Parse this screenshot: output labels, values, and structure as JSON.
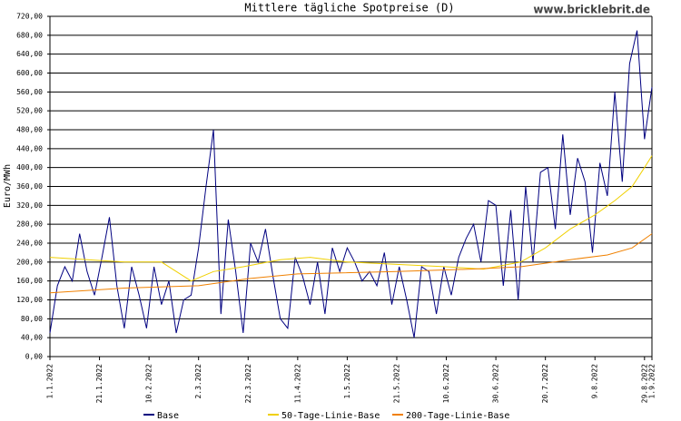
{
  "chart_data": {
    "type": "line",
    "title": "Mittlere tägliche Spotpreise (D)",
    "watermark": "www.bricklebrit.de",
    "y_label": "Euro/MWh",
    "xlim": [
      "1.1.2022",
      "1.9.2022"
    ],
    "xticks": [
      "1.1.2022",
      "21.1.2022",
      "10.2.2022",
      "2.3.2022",
      "22.3.2022",
      "11.4.2022",
      "1.5.2022",
      "21.5.2022",
      "10.6.2022",
      "30.6.2022",
      "20.7.2022",
      "9.8.2022",
      "29.8.2022",
      "1.9.2022"
    ],
    "ylim": [
      0,
      720
    ],
    "yticks": [
      {
        "value": 0,
        "label": "0,00"
      },
      {
        "value": 40,
        "label": "40,00"
      },
      {
        "value": 80,
        "label": "80,00"
      },
      {
        "value": 120,
        "label": "120,00"
      },
      {
        "value": 160,
        "label": "160,00"
      },
      {
        "value": 200,
        "label": "200,00"
      },
      {
        "value": 240,
        "label": "240,00"
      },
      {
        "value": 280,
        "label": "280,00"
      },
      {
        "value": 320,
        "label": "320,00"
      },
      {
        "value": 360,
        "label": "360,00"
      },
      {
        "value": 400,
        "label": "400,00"
      },
      {
        "value": 440,
        "label": "440,00"
      },
      {
        "value": 480,
        "label": "480,00"
      },
      {
        "value": 520,
        "label": "520,00"
      },
      {
        "value": 560,
        "label": "560,00"
      },
      {
        "value": 600,
        "label": "600,00"
      },
      {
        "value": 640,
        "label": "640,00"
      },
      {
        "value": 680,
        "label": "680,00"
      },
      {
        "value": 720,
        "label": "720,00"
      }
    ],
    "grid": true,
    "series": [
      {
        "name": "Base",
        "color": "#000080",
        "x": [
          "1.1.2022",
          "4.1.2022",
          "7.1.2022",
          "10.1.2022",
          "13.1.2022",
          "16.1.2022",
          "19.1.2022",
          "22.1.2022",
          "25.1.2022",
          "28.1.2022",
          "31.1.2022",
          "3.2.2022",
          "6.2.2022",
          "9.2.2022",
          "12.2.2022",
          "15.2.2022",
          "18.2.2022",
          "21.2.2022",
          "24.2.2022",
          "27.2.2022",
          "2.3.2022",
          "5.3.2022",
          "8.3.2022",
          "11.3.2022",
          "14.3.2022",
          "17.3.2022",
          "20.3.2022",
          "23.3.2022",
          "26.3.2022",
          "29.3.2022",
          "1.4.2022",
          "4.4.2022",
          "7.4.2022",
          "10.4.2022",
          "13.4.2022",
          "16.4.2022",
          "19.4.2022",
          "22.4.2022",
          "25.4.2022",
          "28.4.2022",
          "1.5.2022",
          "4.5.2022",
          "7.5.2022",
          "10.5.2022",
          "13.5.2022",
          "16.5.2022",
          "19.5.2022",
          "22.5.2022",
          "25.5.2022",
          "28.5.2022",
          "31.5.2022",
          "3.6.2022",
          "6.6.2022",
          "9.6.2022",
          "12.6.2022",
          "15.6.2022",
          "18.6.2022",
          "21.6.2022",
          "24.6.2022",
          "27.6.2022",
          "30.6.2022",
          "3.7.2022",
          "6.7.2022",
          "9.7.2022",
          "12.7.2022",
          "15.7.2022",
          "18.7.2022",
          "21.7.2022",
          "24.7.2022",
          "27.7.2022",
          "30.7.2022",
          "2.8.2022",
          "5.8.2022",
          "8.8.2022",
          "11.8.2022",
          "14.8.2022",
          "17.8.2022",
          "20.8.2022",
          "23.8.2022",
          "26.8.2022",
          "29.8.2022",
          "1.9.2022"
        ],
        "values": [
          50,
          150,
          190,
          160,
          260,
          180,
          130,
          210,
          295,
          150,
          60,
          190,
          130,
          60,
          190,
          110,
          160,
          50,
          120,
          130,
          230,
          360,
          480,
          90,
          290,
          180,
          50,
          240,
          200,
          270,
          170,
          80,
          60,
          210,
          170,
          110,
          200,
          90,
          230,
          180,
          230,
          200,
          160,
          180,
          150,
          220,
          110,
          190,
          120,
          40,
          190,
          180,
          90,
          190,
          130,
          210,
          250,
          280,
          200,
          330,
          320,
          150,
          310,
          120,
          360,
          200,
          390,
          400,
          270,
          470,
          300,
          420,
          370,
          220,
          410,
          340,
          560,
          370,
          620,
          690,
          460,
          570
        ]
      },
      {
        "name": "50-Tage-Linie-Base",
        "color": "#f0d000",
        "x": [
          "1.1.2022",
          "31.1.2022",
          "15.2.2022",
          "27.2.2022",
          "8.3.2022",
          "20.3.2022",
          "4.4.2022",
          "16.4.2022",
          "1.5.2022",
          "21.5.2022",
          "10.6.2022",
          "25.6.2022",
          "10.7.2022",
          "20.7.2022",
          "30.7.2022",
          "9.8.2022",
          "17.8.2022",
          "24.8.2022",
          "29.8.2022",
          "1.9.2022"
        ],
        "values": [
          210,
          200,
          200,
          160,
          180,
          190,
          205,
          210,
          200,
          195,
          190,
          185,
          200,
          230,
          270,
          300,
          330,
          360,
          400,
          425
        ]
      },
      {
        "name": "200-Tage-Linie-Base",
        "color": "#f08000",
        "x": [
          "1.1.2022",
          "31.1.2022",
          "2.3.2022",
          "22.3.2022",
          "11.4.2022",
          "21.5.2022",
          "20.6.2022",
          "10.7.2022",
          "30.7.2022",
          "14.8.2022",
          "24.8.2022",
          "1.9.2022"
        ],
        "values": [
          135,
          145,
          150,
          165,
          175,
          180,
          185,
          190,
          205,
          215,
          230,
          260
        ]
      }
    ]
  }
}
